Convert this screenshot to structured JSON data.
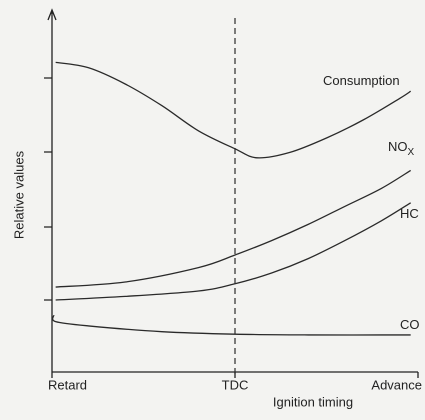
{
  "chart_data": {
    "type": "line",
    "xlabel": "Ignition timing",
    "ylabel": "Relative values",
    "xlim": [
      0,
      10
    ],
    "ylim": [
      0,
      100
    ],
    "xticks": [
      {
        "value": 0,
        "label": "Retard"
      },
      {
        "value": 5,
        "label": "TDC"
      },
      {
        "value": 10,
        "label": "Advance"
      }
    ],
    "vline": {
      "value": 5
    },
    "color": "#2a2a2a",
    "series": [
      {
        "name": "Consumption",
        "x": [
          0.1,
          1,
          2,
          3,
          4,
          5,
          5.6,
          6.5,
          7.5,
          8.5,
          9.5,
          9.8
        ],
        "values": [
          86,
          84.5,
          80,
          74,
          67,
          62,
          59.5,
          61,
          65,
          70,
          76,
          78
        ]
      },
      {
        "name": "NO",
        "name_sub": "X",
        "x": [
          0.1,
          2,
          4,
          5,
          6,
          7,
          8,
          9,
          9.8
        ],
        "values": [
          23.6,
          25,
          29,
          32.5,
          36.5,
          41,
          46,
          51,
          56
        ]
      },
      {
        "name": "HC",
        "x": [
          0.1,
          2,
          4,
          5,
          6,
          7,
          8,
          9,
          9.8
        ],
        "values": [
          20,
          21,
          22.5,
          24.5,
          27.5,
          31.5,
          36.5,
          42,
          47
        ]
      },
      {
        "name": "CO",
        "x": [
          0.05,
          0.1,
          1,
          3,
          5,
          7,
          9.8
        ],
        "values": [
          15.8,
          14,
          12.8,
          11.2,
          10.5,
          10.3,
          10.3
        ]
      }
    ]
  }
}
